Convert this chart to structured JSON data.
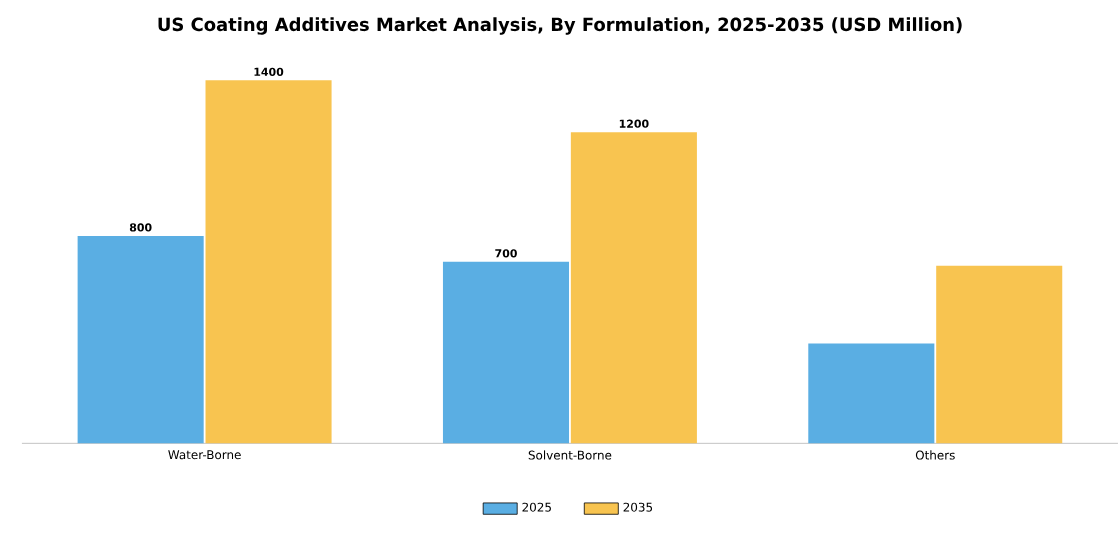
{
  "chart_data": {
    "type": "bar",
    "title": "US Coating Additives Market Analysis, By Formulation, 2025-2035 (USD Million)",
    "categories": [
      "Water-Borne",
      "Solvent-Borne",
      "Others"
    ],
    "series": [
      {
        "name": "2025",
        "color": "#5aaee3",
        "values": [
          800,
          700,
          385
        ],
        "value_labels": [
          "800",
          "700",
          null
        ]
      },
      {
        "name": "2035",
        "color": "#f8c450",
        "values": [
          1400,
          1200,
          685
        ],
        "value_labels": [
          "1400",
          "1200",
          null
        ]
      }
    ],
    "legend": "bottom"
  }
}
